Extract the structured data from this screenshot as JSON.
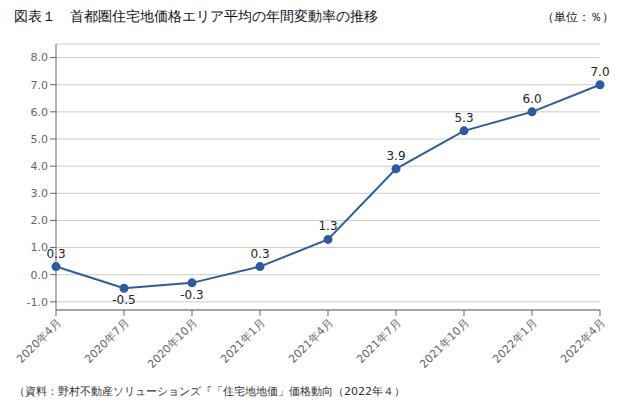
{
  "chart_data": {
    "type": "line",
    "title": "図表１　首都圏住宅地価格エリア平均の年間変動率の推移",
    "subtitle": "（単位：％）",
    "annotations": [
      "（資料：野村不動産ソリューションズ『「住宅地地価」価格動向（2022年４）"
    ],
    "categories": [
      "2020年4月",
      "2020年7月",
      "2020年10月",
      "2021年1月",
      "2021年4月",
      "2021年7月",
      "2021年10月",
      "2022年1月",
      "2022年4月"
    ],
    "values": [
      0.3,
      -0.5,
      -0.3,
      0.3,
      1.3,
      3.9,
      5.3,
      6.0,
      7.0
    ],
    "data_labels": true,
    "value_labels": [
      "0.3",
      "-0.5",
      "-0.3",
      "0.3",
      "1.3",
      "3.9",
      "5.3",
      "6.0",
      "7.0"
    ],
    "color": "#2e5c9a",
    "marker": "circle",
    "ylim": [
      -1.3,
      8.5
    ],
    "yticks": [
      {
        "value": -1.0,
        "label": "-1.0"
      },
      {
        "value": 0.0,
        "label": "0.0"
      },
      {
        "value": 1.0,
        "label": "1.0"
      },
      {
        "value": 2.0,
        "label": "2.0"
      },
      {
        "value": 3.0,
        "label": "3.0"
      },
      {
        "value": 4.0,
        "label": "4.0"
      },
      {
        "value": 5.0,
        "label": "5.0"
      },
      {
        "value": 6.0,
        "label": "6.0"
      },
      {
        "value": 7.0,
        "label": "7.0"
      },
      {
        "value": 8.0,
        "label": "8.0"
      }
    ],
    "grid": true
  }
}
